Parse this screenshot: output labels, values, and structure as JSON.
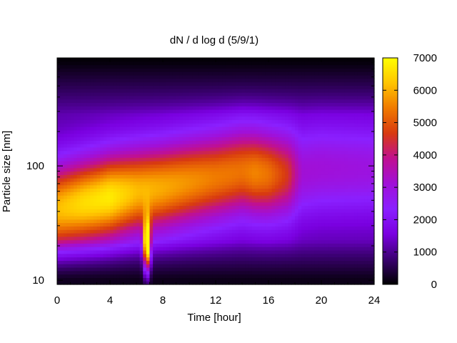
{
  "chart_data": {
    "type": "heatmap",
    "title": "dN / d log d (5/9/1)",
    "xlabel": "Time [hour]",
    "ylabel": "Particle size [nm]",
    "x_range": [
      0,
      24
    ],
    "x_ticks": [
      0,
      4,
      8,
      12,
      16,
      20,
      24
    ],
    "y_scale": "log",
    "y_range": [
      9.2,
      880
    ],
    "y_ticks": [
      10,
      100
    ],
    "colorbar": {
      "range": [
        0,
        7000
      ],
      "ticks": [
        0,
        1000,
        2000,
        3000,
        4000,
        5000,
        6000,
        7000
      ],
      "palette": [
        "#000000",
        "#3a0070",
        "#7a00e0",
        "#8a20ff",
        "#a010d8",
        "#c01090",
        "#d83a10",
        "#f07a00",
        "#ffc400",
        "#ffff00"
      ]
    },
    "grid": false,
    "mode_diameter_nm": [
      {
        "hour": 0,
        "nm": 42
      },
      {
        "hour": 3,
        "nm": 50
      },
      {
        "hour": 6,
        "nm": 60
      },
      {
        "hour": 8,
        "nm": 65
      },
      {
        "hour": 12,
        "nm": 80
      },
      {
        "hour": 14,
        "nm": 90
      },
      {
        "hour": 16,
        "nm": 85
      },
      {
        "hour": 17.5,
        "nm": 85
      },
      {
        "hour": 20,
        "nm": 95
      },
      {
        "hour": 24,
        "nm": 95
      }
    ],
    "peak_concentration": [
      {
        "hour": 0,
        "value": 5000
      },
      {
        "hour": 2,
        "value": 5400
      },
      {
        "hour": 4,
        "value": 5600
      },
      {
        "hour": 6,
        "value": 5000
      },
      {
        "hour": 8,
        "value": 4800
      },
      {
        "hour": 12,
        "value": 4300
      },
      {
        "hour": 14,
        "value": 4200
      },
      {
        "hour": 15,
        "value": 4400
      },
      {
        "hour": 16,
        "value": 4200
      },
      {
        "hour": 17.5,
        "value": 3400
      },
      {
        "hour": 18.5,
        "value": 2000
      },
      {
        "hour": 24,
        "value": 1800
      }
    ],
    "events": [
      {
        "hour": 6.8,
        "nm": 20,
        "value": 6500,
        "description": "narrow burst of small particles"
      }
    ]
  }
}
